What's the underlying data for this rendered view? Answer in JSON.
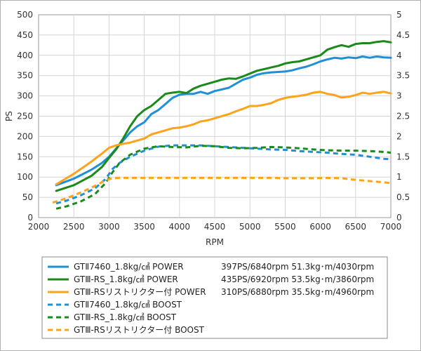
{
  "chart_data": {
    "type": "line",
    "xlabel": "RPM",
    "ylabel": "PS",
    "xlim": [
      2000,
      7000
    ],
    "ylim": [
      0,
      500
    ],
    "y2lim": [
      0,
      5
    ],
    "x_ticks": [
      "2000",
      "2500",
      "3000",
      "3500",
      "4000",
      "4500",
      "5000",
      "5500",
      "6000",
      "6500",
      "7000"
    ],
    "y_ticks": [
      "0",
      "50",
      "100",
      "150",
      "200",
      "250",
      "300",
      "350",
      "400",
      "450",
      "500"
    ],
    "y2_ticks": [
      "0",
      "0.5",
      "1",
      "1.5",
      "2",
      "2.5",
      "3",
      "3.5",
      "4",
      "4.5",
      "5"
    ],
    "grid": true,
    "legend_position": "bottom",
    "series": [
      {
        "name": "GTⅡ7460_1.8kg/㎠ POWER",
        "note": "397PS/6840rpm 51.3kg･m/4030rpm",
        "color": "#1f8fd6",
        "dash": "solid",
        "axis": "left",
        "x": [
          2250,
          2500,
          2750,
          2900,
          3000,
          3100,
          3200,
          3300,
          3400,
          3500,
          3600,
          3700,
          3800,
          3900,
          4000,
          4100,
          4200,
          4300,
          4400,
          4500,
          4600,
          4700,
          4800,
          4900,
          5000,
          5100,
          5200,
          5300,
          5500,
          5600,
          5700,
          5800,
          5900,
          6000,
          6100,
          6200,
          6300,
          6400,
          6500,
          6600,
          6700,
          6800,
          6900,
          7000
        ],
        "y": [
          80,
          96,
          118,
          135,
          150,
          170,
          190,
          210,
          225,
          235,
          255,
          265,
          280,
          295,
          303,
          305,
          305,
          310,
          305,
          312,
          316,
          320,
          330,
          340,
          345,
          352,
          356,
          358,
          360,
          363,
          368,
          372,
          378,
          385,
          390,
          394,
          392,
          395,
          393,
          397,
          394,
          397,
          395,
          394
        ]
      },
      {
        "name": "GTⅢ-RS_1.8kg/㎠ POWER",
        "note": "435PS/6920rpm 53.5kg･m/3860rpm",
        "color": "#1a8a1a",
        "dash": "solid",
        "axis": "left",
        "x": [
          2250,
          2500,
          2750,
          2900,
          3000,
          3100,
          3200,
          3300,
          3400,
          3500,
          3600,
          3700,
          3800,
          3900,
          4000,
          4100,
          4200,
          4300,
          4400,
          4500,
          4600,
          4700,
          4800,
          4900,
          5000,
          5100,
          5200,
          5300,
          5400,
          5500,
          5600,
          5700,
          5800,
          5900,
          6000,
          6100,
          6200,
          6300,
          6400,
          6500,
          6600,
          6700,
          6800,
          6900,
          7000
        ],
        "y": [
          66,
          80,
          103,
          125,
          147,
          168,
          195,
          225,
          250,
          265,
          275,
          290,
          305,
          308,
          310,
          307,
          318,
          325,
          330,
          335,
          340,
          343,
          342,
          348,
          355,
          362,
          366,
          370,
          374,
          380,
          383,
          385,
          390,
          395,
          400,
          414,
          420,
          425,
          421,
          428,
          430,
          430,
          433,
          435,
          432
        ]
      },
      {
        "name": "GTⅢ-RSリストリクター付 POWER",
        "note": "310PS/6880rpm 35.5kg･m/4960rpm",
        "color": "#ffa31a",
        "dash": "solid",
        "axis": "left",
        "x": [
          2250,
          2500,
          2750,
          2900,
          3000,
          3100,
          3200,
          3300,
          3400,
          3500,
          3600,
          3700,
          3800,
          3900,
          4000,
          4100,
          4200,
          4300,
          4400,
          4500,
          4600,
          4700,
          4800,
          4900,
          5000,
          5100,
          5200,
          5300,
          5400,
          5500,
          5600,
          5700,
          5800,
          5900,
          6000,
          6100,
          6200,
          6300,
          6400,
          6500,
          6600,
          6700,
          6800,
          6900,
          7000
        ],
        "y": [
          82,
          108,
          138,
          158,
          172,
          178,
          182,
          185,
          190,
          195,
          205,
          210,
          215,
          220,
          222,
          225,
          230,
          237,
          240,
          245,
          250,
          255,
          262,
          268,
          275,
          275,
          278,
          282,
          290,
          295,
          298,
          300,
          303,
          308,
          310,
          305,
          302,
          296,
          298,
          302,
          308,
          305,
          308,
          310,
          306
        ]
      },
      {
        "name": "GTⅡ7460_1.8kg/㎠ BOOST",
        "color": "#1f8fd6",
        "dash": "dashed",
        "axis": "right",
        "x": [
          2250,
          2400,
          2600,
          2800,
          2950,
          3050,
          3150,
          3300,
          3500,
          3700,
          3900,
          4100,
          4300,
          4500,
          4700,
          4900,
          5100,
          5300,
          5500,
          5700,
          5900,
          6100,
          6300,
          6500,
          6700,
          6900,
          7000
        ],
        "y": [
          0.35,
          0.42,
          0.55,
          0.72,
          0.95,
          1.2,
          1.35,
          1.5,
          1.65,
          1.75,
          1.78,
          1.78,
          1.78,
          1.76,
          1.74,
          1.72,
          1.7,
          1.68,
          1.67,
          1.64,
          1.62,
          1.6,
          1.57,
          1.55,
          1.5,
          1.45,
          1.44
        ]
      },
      {
        "name": "GTⅢ-RS_1.8kg/㎠ BOOST",
        "color": "#1a8a1a",
        "dash": "dashed",
        "axis": "right",
        "x": [
          2250,
          2400,
          2600,
          2800,
          2950,
          3050,
          3150,
          3300,
          3500,
          3700,
          3900,
          4100,
          4300,
          4500,
          4700,
          4900,
          5100,
          5300,
          5500,
          5700,
          5900,
          6100,
          6300,
          6500,
          6700,
          6900,
          7000
        ],
        "y": [
          0.22,
          0.28,
          0.4,
          0.58,
          0.85,
          1.12,
          1.35,
          1.55,
          1.7,
          1.76,
          1.74,
          1.73,
          1.77,
          1.76,
          1.72,
          1.71,
          1.72,
          1.74,
          1.73,
          1.71,
          1.68,
          1.66,
          1.65,
          1.65,
          1.64,
          1.62,
          1.6
        ]
      },
      {
        "name": "GTⅢ-RSリストリクター付 BOOST",
        "color": "#ffa31a",
        "dash": "dashed",
        "axis": "right",
        "x": [
          2200,
          2400,
          2600,
          2800,
          2950,
          3050,
          3150,
          3300,
          3500,
          3700,
          3900,
          4100,
          4300,
          4500,
          4700,
          4900,
          5100,
          5300,
          5500,
          5700,
          5900,
          6100,
          6300,
          6500,
          6700,
          6900,
          7000
        ],
        "y": [
          0.37,
          0.48,
          0.62,
          0.78,
          0.92,
          0.97,
          0.98,
          0.98,
          0.98,
          0.98,
          0.98,
          0.98,
          0.98,
          0.98,
          0.98,
          0.98,
          0.98,
          0.98,
          0.97,
          0.97,
          0.97,
          0.98,
          0.97,
          0.93,
          0.9,
          0.87,
          0.85
        ]
      }
    ]
  }
}
